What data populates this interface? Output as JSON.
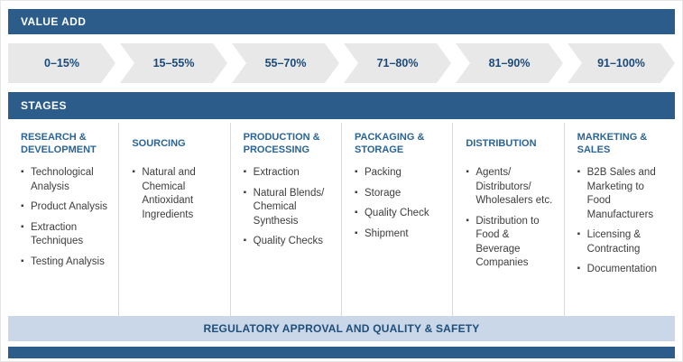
{
  "colors": {
    "primary_blue": "#2c5d8a",
    "chevron_gray": "#e8e8e8",
    "range_text": "#1b4a7a",
    "column_header_text": "#2a6496",
    "footer_bg": "#c9d7e8",
    "body_text": "#3d3d3d"
  },
  "value_add": {
    "title": "VALUE ADD",
    "ranges": [
      "0–15%",
      "15–55%",
      "55–70%",
      "71–80%",
      "81–90%",
      "91–100%"
    ]
  },
  "stages": {
    "title": "STAGES",
    "columns": [
      {
        "header": "RESEARCH & DEVELOPMENT",
        "items": [
          "Technological Analysis",
          "Product Analysis",
          "Extraction Techniques",
          "Testing Analysis"
        ]
      },
      {
        "header": "SOURCING",
        "items": [
          "Natural and Chemical Antioxidant Ingredients"
        ]
      },
      {
        "header": "PRODUCTION & PROCESSING",
        "items": [
          "Extraction",
          "Natural Blends/ Chemical Synthesis",
          "Quality Checks"
        ]
      },
      {
        "header": "PACKAGING & STORAGE",
        "items": [
          "Packing",
          "Storage",
          "Quality Check",
          "Shipment"
        ]
      },
      {
        "header": "DISTRIBUTION",
        "items": [
          "Agents/ Distributors/ Wholesalers etc.",
          "Distribution to Food & Beverage Companies"
        ]
      },
      {
        "header": "MARKETING & SALES",
        "items": [
          "B2B Sales and Marketing to Food Manufacturers",
          "Licensing & Contracting",
          "Documentation"
        ]
      }
    ]
  },
  "footer": {
    "label": "REGULATORY APPROVAL AND QUALITY & SAFETY"
  }
}
